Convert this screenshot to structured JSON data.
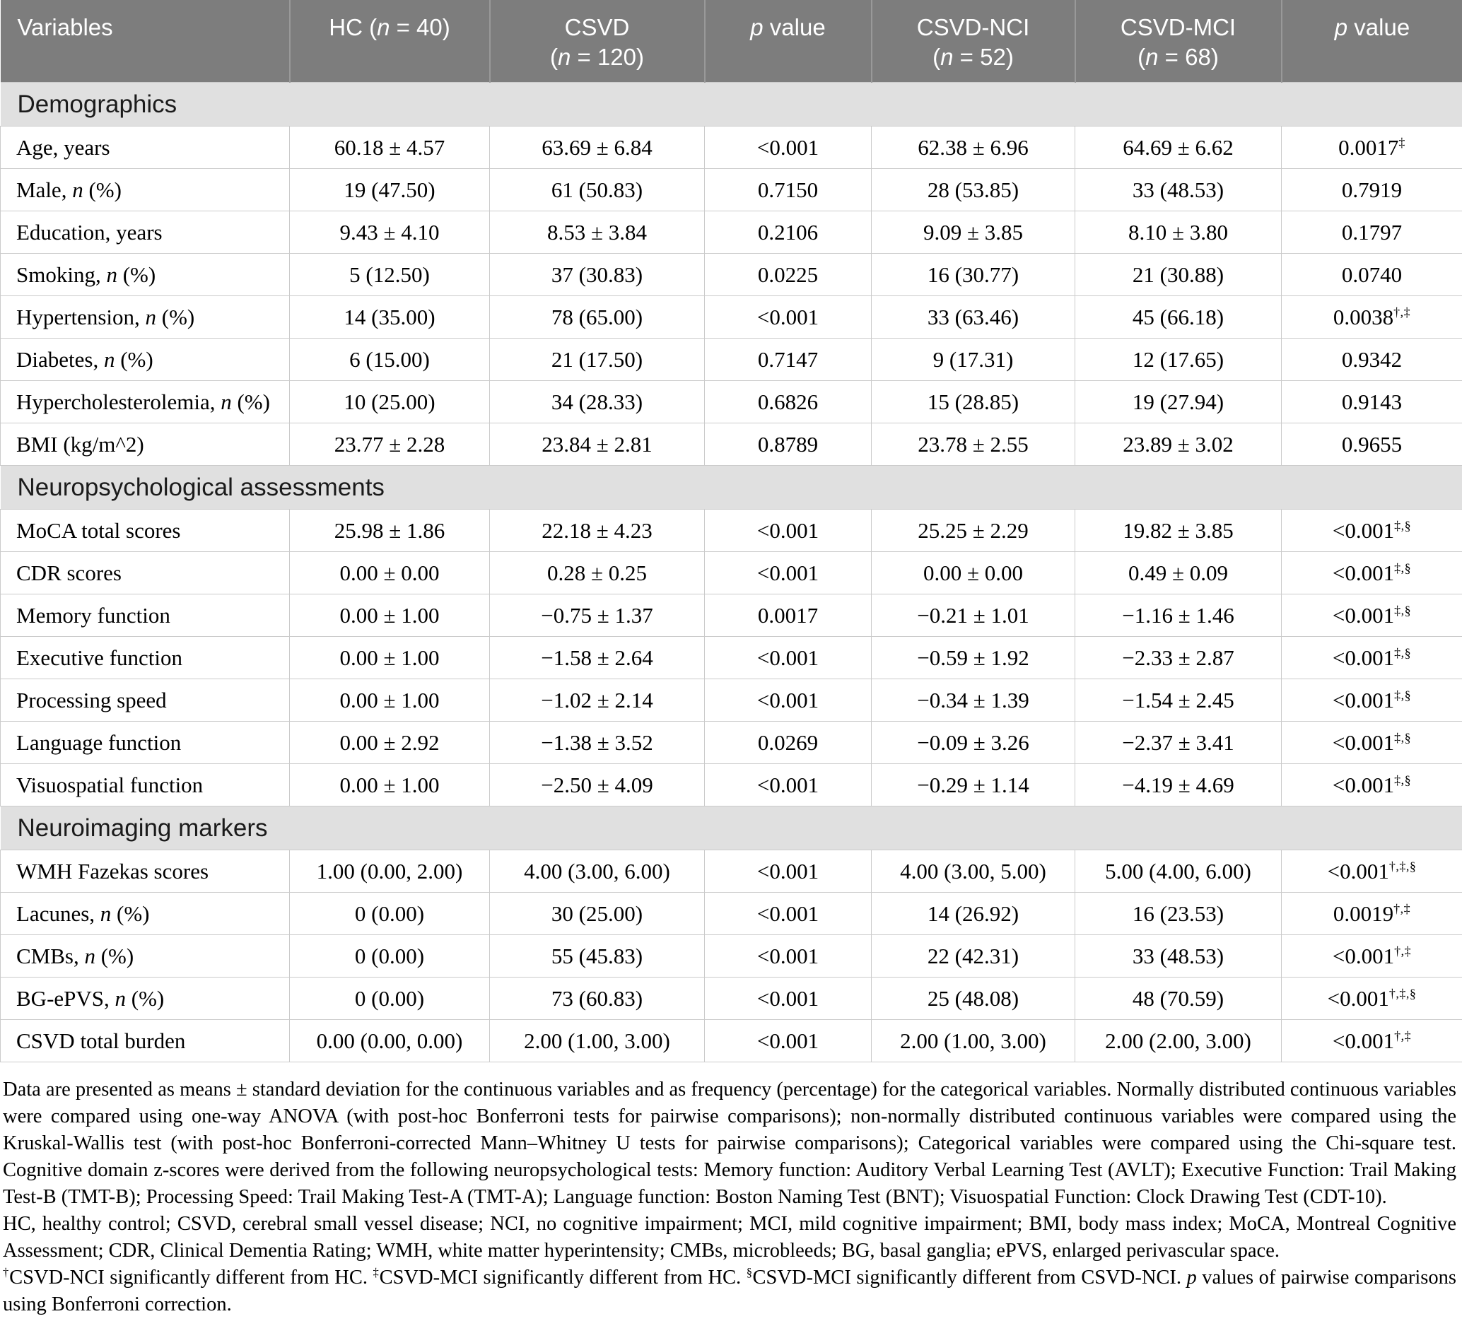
{
  "table": {
    "columns": [
      {
        "label": "Variables"
      },
      {
        "label": "HC (*n* = 40)"
      },
      {
        "label": "CSVD\n(*n* = 120)"
      },
      {
        "label": "*p* value"
      },
      {
        "label": "CSVD-NCI\n(*n* = 52)"
      },
      {
        "label": "CSVD-MCI\n(*n* = 68)"
      },
      {
        "label": "*p* value"
      }
    ],
    "sections": [
      {
        "title": "Demographics",
        "rows": [
          {
            "label": "Age, years",
            "hc": "60.18 ± 4.57",
            "csvd": "63.69 ± 6.84",
            "p1": "<0.001",
            "nci": "62.38 ± 6.96",
            "mci": "64.69 ± 6.62",
            "p2": "0.0017^‡^"
          },
          {
            "label": "Male, *n* (%)",
            "hc": "19 (47.50)",
            "csvd": "61 (50.83)",
            "p1": "0.7150",
            "nci": "28 (53.85)",
            "mci": "33 (48.53)",
            "p2": "0.7919"
          },
          {
            "label": "Education, years",
            "hc": "9.43 ± 4.10",
            "csvd": "8.53 ± 3.84",
            "p1": "0.2106",
            "nci": "9.09 ± 3.85",
            "mci": "8.10 ± 3.80",
            "p2": "0.1797"
          },
          {
            "label": "Smoking, *n* (%)",
            "hc": "5 (12.50)",
            "csvd": "37 (30.83)",
            "p1": "0.0225",
            "nci": "16 (30.77)",
            "mci": "21 (30.88)",
            "p2": "0.0740"
          },
          {
            "label": "Hypertension, *n* (%)",
            "hc": "14 (35.00)",
            "csvd": "78 (65.00)",
            "p1": "<0.001",
            "nci": "33 (63.46)",
            "mci": "45 (66.18)",
            "p2": "0.0038^†,‡^"
          },
          {
            "label": "Diabetes, *n* (%)",
            "hc": "6 (15.00)",
            "csvd": "21 (17.50)",
            "p1": "0.7147",
            "nci": "9 (17.31)",
            "mci": "12 (17.65)",
            "p2": "0.9342"
          },
          {
            "label": "Hypercholesterolemia, *n* (%)",
            "hc": "10 (25.00)",
            "csvd": "34 (28.33)",
            "p1": "0.6826",
            "nci": "15 (28.85)",
            "mci": "19 (27.94)",
            "p2": "0.9143"
          },
          {
            "label": "BMI (kg/m^2)",
            "hc": "23.77 ± 2.28",
            "csvd": "23.84 ± 2.81",
            "p1": "0.8789",
            "nci": "23.78 ± 2.55",
            "mci": "23.89 ± 3.02",
            "p2": "0.9655"
          }
        ]
      },
      {
        "title": "Neuropsychological assessments",
        "rows": [
          {
            "label": "MoCA total scores",
            "hc": "25.98 ± 1.86",
            "csvd": "22.18 ± 4.23",
            "p1": "<0.001",
            "nci": "25.25 ± 2.29",
            "mci": "19.82 ± 3.85",
            "p2": "<0.001^‡,§^"
          },
          {
            "label": "CDR scores",
            "hc": "0.00 ± 0.00",
            "csvd": "0.28 ± 0.25",
            "p1": "<0.001",
            "nci": "0.00 ± 0.00",
            "mci": "0.49 ± 0.09",
            "p2": "<0.001^‡,§^"
          },
          {
            "label": "Memory function",
            "hc": "0.00 ± 1.00",
            "csvd": "−0.75 ± 1.37",
            "p1": "0.0017",
            "nci": "−0.21 ± 1.01",
            "mci": "−1.16 ± 1.46",
            "p2": "<0.001^‡,§^"
          },
          {
            "label": "Executive function",
            "hc": "0.00 ± 1.00",
            "csvd": "−1.58 ± 2.64",
            "p1": "<0.001",
            "nci": "−0.59 ± 1.92",
            "mci": "−2.33 ± 2.87",
            "p2": "<0.001^‡,§^"
          },
          {
            "label": "Processing speed",
            "hc": "0.00 ± 1.00",
            "csvd": "−1.02 ± 2.14",
            "p1": "<0.001",
            "nci": "−0.34 ± 1.39",
            "mci": "−1.54 ± 2.45",
            "p2": "<0.001^‡,§^"
          },
          {
            "label": "Language function",
            "hc": "0.00 ± 2.92",
            "csvd": "−1.38 ± 3.52",
            "p1": "0.0269",
            "nci": "−0.09 ± 3.26",
            "mci": "−2.37 ± 3.41",
            "p2": "<0.001^‡,§^"
          },
          {
            "label": "Visuospatial function",
            "hc": "0.00 ± 1.00",
            "csvd": "−2.50 ± 4.09",
            "p1": "<0.001",
            "nci": "−0.29 ± 1.14",
            "mci": "−4.19 ± 4.69",
            "p2": "<0.001^‡,§^"
          }
        ]
      },
      {
        "title": "Neuroimaging markers",
        "rows": [
          {
            "label": "WMH Fazekas scores",
            "hc": "1.00 (0.00, 2.00)",
            "csvd": "4.00 (3.00, 6.00)",
            "p1": "<0.001",
            "nci": "4.00 (3.00, 5.00)",
            "mci": "5.00 (4.00, 6.00)",
            "p2": "<0.001^†,‡,§^"
          },
          {
            "label": "Lacunes, *n* (%)",
            "hc": "0 (0.00)",
            "csvd": "30 (25.00)",
            "p1": "<0.001",
            "nci": "14 (26.92)",
            "mci": "16 (23.53)",
            "p2": "0.0019^†,‡^"
          },
          {
            "label": "CMBs, *n* (%)",
            "hc": "0 (0.00)",
            "csvd": "55 (45.83)",
            "p1": "<0.001",
            "nci": "22 (42.31)",
            "mci": "33 (48.53)",
            "p2": "<0.001^†,‡^"
          },
          {
            "label": "BG-ePVS, *n* (%)",
            "hc": "0 (0.00)",
            "csvd": "73 (60.83)",
            "p1": "<0.001",
            "nci": "25 (48.08)",
            "mci": "48 (70.59)",
            "p2": "<0.001^†,‡,§^"
          },
          {
            "label": "CSVD total burden",
            "hc": "0.00 (0.00, 0.00)",
            "csvd": "2.00 (1.00, 3.00)",
            "p1": "<0.001",
            "nci": "2.00 (1.00, 3.00)",
            "mci": "2.00 (2.00, 3.00)",
            "p2": "<0.001^†,‡^"
          }
        ]
      }
    ]
  },
  "footnotes": [
    "Data are presented as means ± standard deviation for the continuous variables and as frequency (percentage) for the categorical variables. Normally distributed continuous variables were compared using one-way ANOVA (with post-hoc Bonferroni tests for pairwise comparisons); non-normally distributed continuous variables were compared using the Kruskal-Wallis test (with post-hoc Bonferroni-corrected Mann–Whitney U tests for pairwise comparisons); Categorical variables were compared using the Chi-square test. Cognitive domain z-scores were derived from the following neuropsychological tests: Memory function: Auditory Verbal Learning Test (AVLT); Executive Function: Trail Making Test-B (TMT-B); Processing Speed: Trail Making Test-A (TMT-A); Language function: Boston Naming Test (BNT); Visuospatial Function: Clock Drawing Test (CDT-10).",
    "HC, healthy control; CSVD, cerebral small vessel disease; NCI, no cognitive impairment; MCI, mild cognitive impairment; BMI, body mass index; MoCA, Montreal Cognitive Assessment; CDR, Clinical Dementia Rating; WMH, white matter hyperintensity; CMBs, microbleeds; BG, basal ganglia; ePVS, enlarged perivascular space.",
    "^†^CSVD-NCI significantly different from HC. ^‡^CSVD-MCI significantly different from HC. ^§^CSVD-MCI significantly different from CSVD-NCI. *p* values of pairwise comparisons using Bonferroni correction."
  ],
  "colors": {
    "header_bg": "#7d7d7d",
    "header_text": "#ffffff",
    "section_bg": "#e0e0e0",
    "border": "#cbcbcb"
  }
}
